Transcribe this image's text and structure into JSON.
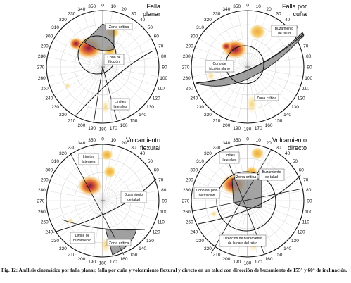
{
  "figure_number_label": "Fig. 12:",
  "caption": "Análisis cinemático por falla planar, falla por cuña y volcamiento flexural y directo en un talud con dirección de buzamiento de 155° y 60° de inclinación.",
  "tick_labels": [
    "0",
    "10",
    "20",
    "30",
    "40",
    "50",
    "60",
    "70",
    "80",
    "90",
    "100",
    "110",
    "120",
    "130",
    "140",
    "150",
    "160",
    "170",
    "180",
    "190",
    "200",
    "210",
    "220",
    "230",
    "240",
    "250",
    "260",
    "270",
    "280",
    "290",
    "300",
    "310",
    "320",
    "330",
    "340",
    "350"
  ],
  "panels": [
    {
      "title_lines": [
        "Falla",
        "planar"
      ],
      "labels": [
        "Zona crítica",
        "Cono de fricción",
        "Límites laterales"
      ]
    },
    {
      "title_lines": [
        "Falla por",
        "cuña"
      ],
      "labels": [
        "Buzamiento de talud",
        "Cono de fricción plano",
        "Zona crítica"
      ]
    },
    {
      "title_lines": [
        "Volcamiento",
        "flexural"
      ],
      "labels": [
        "Límites laterales",
        "Buzamiento de talud",
        "Límite de buzamiento",
        "Zona crítica"
      ]
    },
    {
      "title_lines": [
        "Volcamiento",
        "directo"
      ],
      "labels": [
        "Límites laterales",
        "Zona crítica",
        "Buzamiento de talud",
        "Cono del polo de fricción",
        "Dirección de buzamiento de la cara del talud"
      ]
    }
  ],
  "colors": {
    "hot_core": "#7a1f3a",
    "hot_mid": "#d9602a",
    "warm": "#f2b94a",
    "pale": "#f7df9a",
    "critical_fill": "#8f8f8f",
    "grid": "#c8c8c8",
    "line": "#111111"
  }
}
